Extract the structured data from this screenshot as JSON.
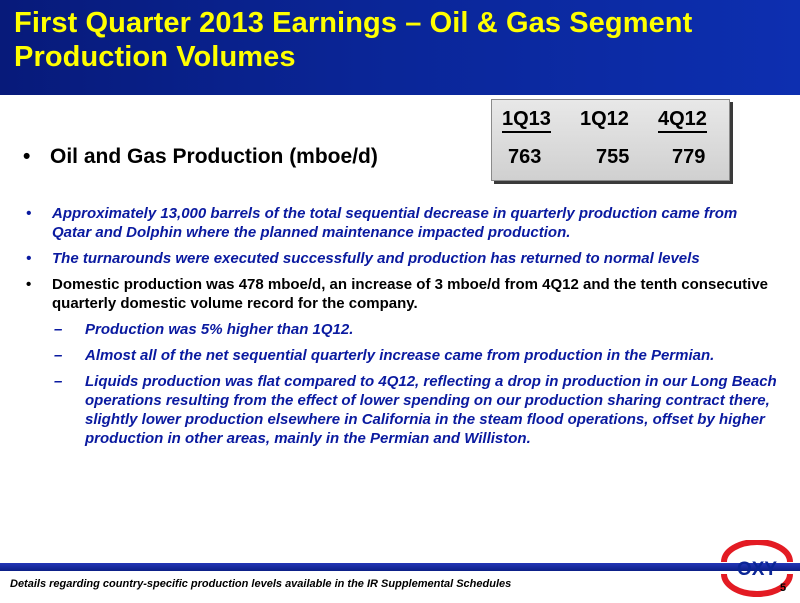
{
  "header": {
    "title_line1": "First Quarter 2013 Earnings – Oil & Gas Segment",
    "title_line2": "Production Volumes"
  },
  "table": {
    "headers": [
      "1Q13",
      "1Q12",
      "4Q12"
    ],
    "values": [
      "763",
      "755",
      "779"
    ]
  },
  "main_bullet": {
    "marker": "•",
    "text": "Oil and Gas Production (mboe/d)"
  },
  "bullets": [
    {
      "marker": "•",
      "text": "Approximately 13,000 barrels of the total sequential decrease in quarterly production came from Qatar and Dolphin where the planned maintenance impacted production."
    },
    {
      "marker": "•",
      "text": "The turnarounds were executed successfully and production has returned to normal levels"
    },
    {
      "marker": "•",
      "text": "Domestic production was 478 mboe/d, an increase of 3 mboe/d from 4Q12 and the tenth consecutive quarterly domestic volume record for the company."
    }
  ],
  "sub_bullets": [
    {
      "marker": "–",
      "text": "Production was 5% higher than 1Q12."
    },
    {
      "marker": "–",
      "text": "Almost all of the net sequential quarterly increase came from production in the Permian."
    },
    {
      "marker": "–",
      "text": "Liquids production was flat compared to 4Q12, reflecting a drop in production in our Long Beach operations resulting from the effect of lower spending on our production sharing contract there, slightly lower production elsewhere in California in the steam flood operations, offset by higher production in other areas, mainly in the Permian and Williston."
    }
  ],
  "footer": {
    "note": "Details regarding country-specific production levels available in the IR Supplemental Schedules",
    "page_number": "5",
    "logo_text": "OXY"
  },
  "colors": {
    "header_bg": "#0a2596",
    "title_text": "#ffff00",
    "italic_text": "#0a1aa0",
    "logo_red": "#e31b23"
  }
}
